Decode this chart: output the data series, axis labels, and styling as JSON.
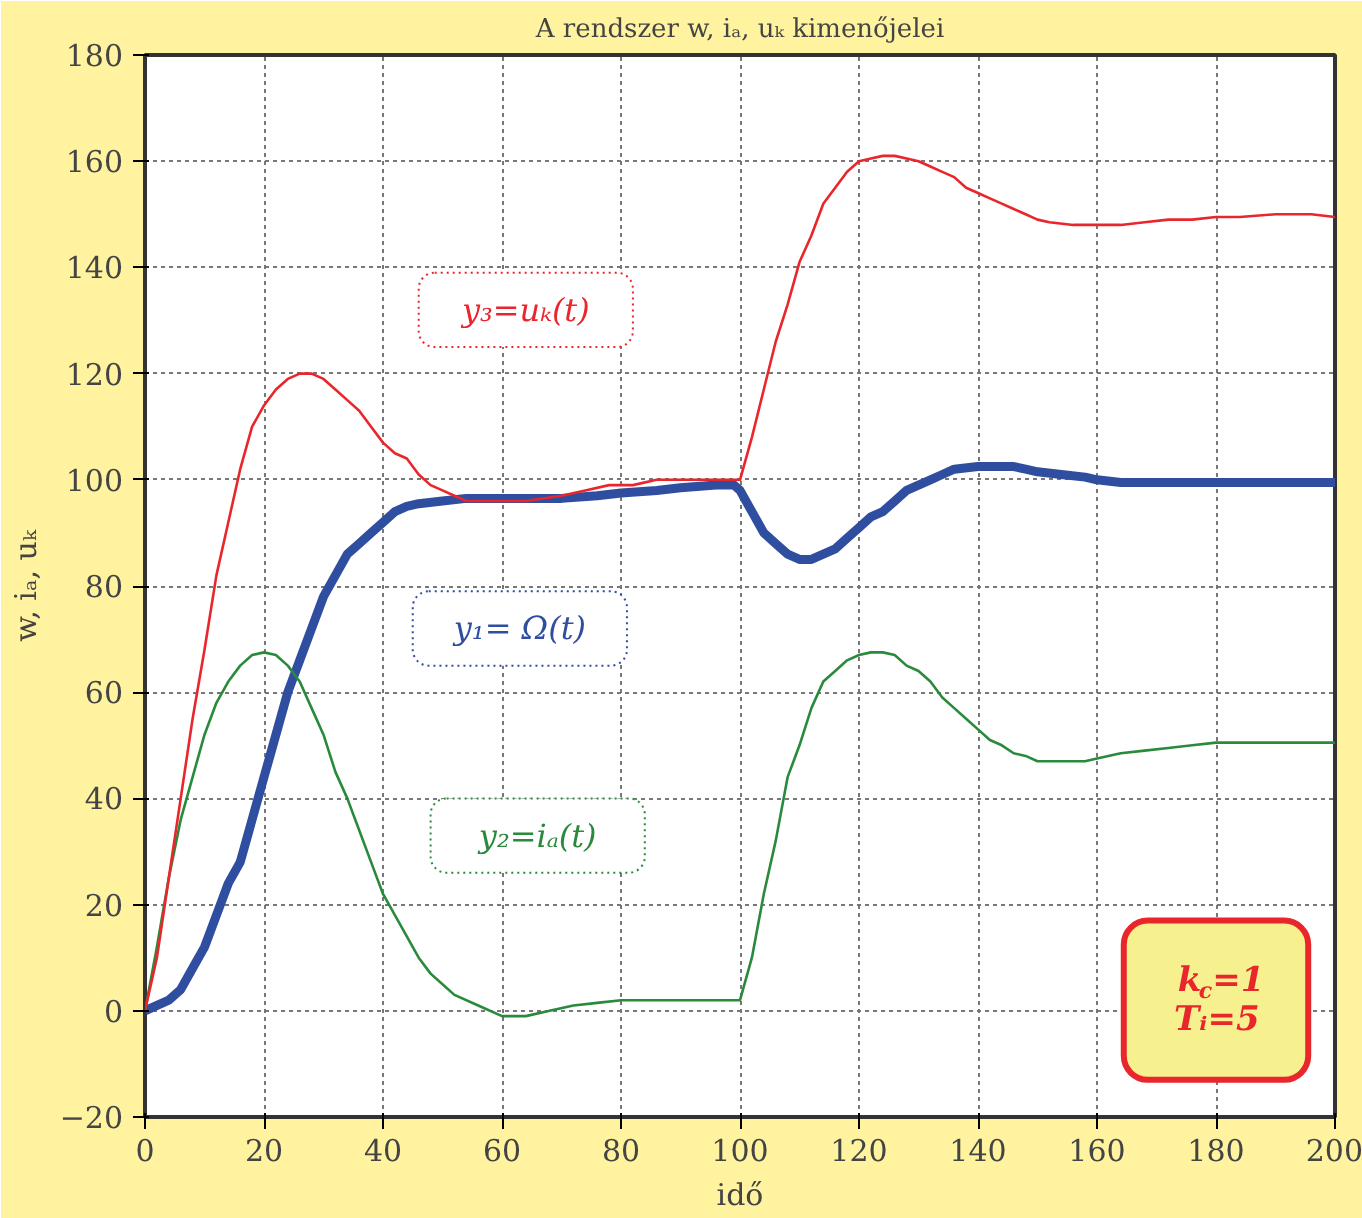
{
  "chart_data": {
    "type": "line",
    "title": "A rendszer w, iₐ, uₖ kimenőjelei",
    "xlabel": "idő",
    "ylabel": "w, iₐ, uₖ",
    "xlim": [
      0,
      200
    ],
    "ylim": [
      -20,
      180
    ],
    "xticks": [
      0,
      20,
      40,
      60,
      80,
      100,
      120,
      140,
      160,
      180,
      200
    ],
    "yticks": [
      -20,
      0,
      20,
      40,
      60,
      80,
      100,
      120,
      140,
      160,
      180
    ],
    "grid": true,
    "marker": "none",
    "line_style": "solid",
    "series": [
      {
        "color": "#2f4ea0",
        "x": [
          0,
          4,
          6,
          8,
          10,
          12,
          14,
          16,
          18,
          20,
          22,
          24,
          26,
          28,
          30,
          32,
          34,
          36,
          38,
          40,
          42,
          44,
          46,
          50,
          54,
          60,
          70,
          76,
          80,
          86,
          90,
          96,
          99,
          100,
          102,
          104,
          106,
          108,
          110,
          112,
          114,
          116,
          118,
          120,
          122,
          124,
          126,
          128,
          130,
          132,
          134,
          136,
          140,
          146,
          148,
          150,
          154,
          158,
          160,
          164,
          200
        ],
        "values": [
          0,
          2,
          4,
          8,
          12,
          18,
          24,
          28,
          36,
          44,
          52,
          60,
          66,
          72,
          78,
          82,
          86,
          88,
          90,
          92,
          94,
          95,
          95.5,
          96,
          96.5,
          96.5,
          96.5,
          97,
          97.5,
          98,
          98.5,
          99,
          99,
          98,
          94,
          90,
          88,
          86,
          85,
          85,
          86,
          87,
          89,
          91,
          93,
          94,
          96,
          98,
          99,
          100,
          101,
          102,
          102.5,
          102.5,
          102,
          101.5,
          101,
          100.5,
          100,
          99.5,
          99.5
        ]
      },
      {
        "color": "#2a8a3c",
        "x": [
          0,
          2,
          4,
          6,
          8,
          10,
          12,
          14,
          16,
          18,
          20,
          22,
          24,
          26,
          28,
          30,
          32,
          34,
          36,
          38,
          40,
          42,
          44,
          46,
          48,
          50,
          52,
          56,
          60,
          64,
          68,
          72,
          76,
          80,
          90,
          96,
          100,
          102,
          104,
          106,
          108,
          110,
          112,
          114,
          116,
          118,
          120,
          122,
          124,
          126,
          128,
          130,
          132,
          134,
          136,
          138,
          140,
          142,
          144,
          146,
          148,
          150,
          154,
          158,
          160,
          164,
          168,
          172,
          176,
          180,
          200
        ],
        "values": [
          0,
          12,
          25,
          36,
          44,
          52,
          58,
          62,
          65,
          67,
          67.5,
          67,
          65,
          62,
          57,
          52,
          45,
          40,
          34,
          28,
          22,
          18,
          14,
          10,
          7,
          5,
          3,
          1,
          -1,
          -1,
          0,
          1,
          1.5,
          2,
          2,
          2,
          2,
          10,
          22,
          32,
          44,
          50,
          57,
          62,
          64,
          66,
          67,
          67.5,
          67.5,
          67,
          65,
          64,
          62,
          59,
          57,
          55,
          53,
          51,
          50,
          48.5,
          48,
          47,
          47,
          47,
          47.5,
          48.5,
          49,
          49.5,
          50,
          50.5,
          50.5
        ]
      },
      {
        "color": "#e8262b",
        "x": [
          0,
          2,
          4,
          6,
          8,
          10,
          12,
          14,
          16,
          18,
          20,
          22,
          24,
          26,
          28,
          30,
          32,
          34,
          36,
          38,
          40,
          42,
          44,
          46,
          48,
          50,
          52,
          54,
          56,
          60,
          64,
          70,
          74,
          78,
          82,
          86,
          90,
          96,
          100,
          102,
          104,
          106,
          108,
          110,
          112,
          114,
          116,
          118,
          120,
          122,
          124,
          126,
          128,
          130,
          132,
          134,
          136,
          138,
          140,
          142,
          144,
          146,
          148,
          150,
          152,
          156,
          160,
          164,
          168,
          172,
          176,
          180,
          184,
          190,
          196,
          200
        ],
        "values": [
          0,
          10,
          25,
          40,
          55,
          68,
          82,
          92,
          102,
          110,
          114,
          117,
          119,
          120,
          120,
          119,
          117,
          115,
          113,
          110,
          107,
          105,
          104,
          101,
          99,
          98,
          97,
          96,
          96,
          96,
          96,
          97,
          98,
          99,
          99,
          100,
          100,
          100,
          100,
          108,
          117,
          126,
          133,
          141,
          146,
          152,
          155,
          158,
          160,
          160.5,
          161,
          161,
          160.5,
          160,
          159,
          158,
          157,
          155,
          154,
          153,
          152,
          151,
          150,
          149,
          148.5,
          148,
          148,
          148,
          148.5,
          149,
          149,
          149.5,
          149.5,
          150,
          150,
          149.5
        ]
      }
    ],
    "annotations": [
      "y₁= Ω(t)",
      "y₂=iₐ(t)",
      "y₃=uₖ(t)",
      "k$_{c}$=1\nTᵢ=5"
    ]
  }
}
